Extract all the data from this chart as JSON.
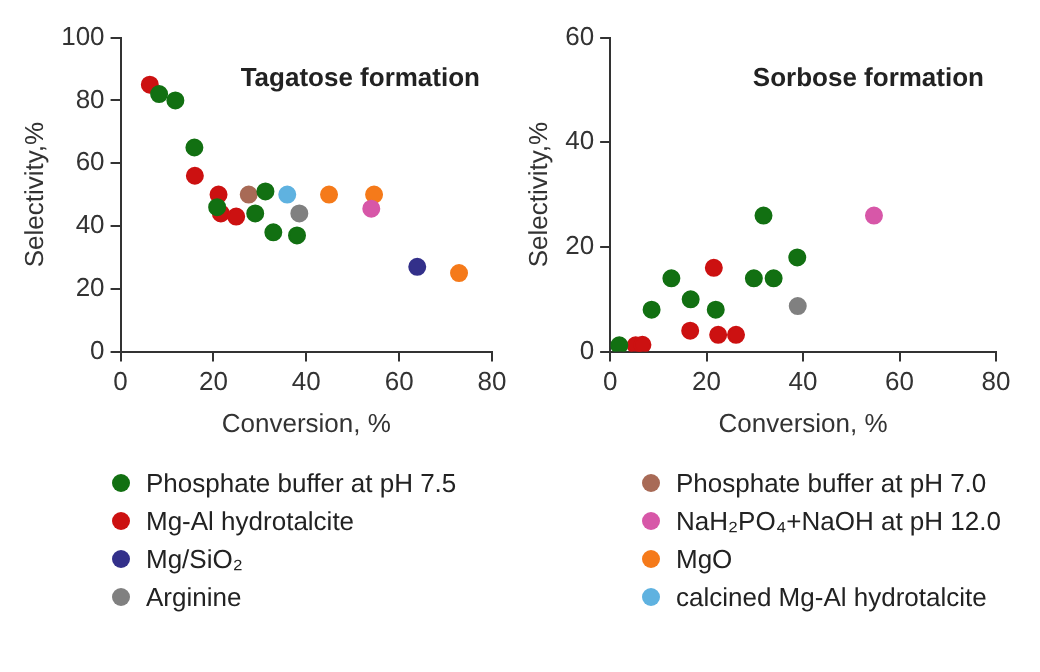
{
  "chart_data": [
    {
      "type": "scatter",
      "title": "Tagatose formation",
      "xlabel": "Conversion, %",
      "ylabel": "Selectivity,%",
      "xlim": [
        0,
        80
      ],
      "xticks": [
        0,
        20,
        40,
        60,
        80
      ],
      "ylim": [
        0,
        100
      ],
      "yticks": [
        0,
        20,
        40,
        60,
        80,
        100
      ],
      "marker": "circle",
      "legend": "bottom",
      "series": [
        {
          "name": "Phosphate buffer at pH 7.5",
          "color": "#127012",
          "x": [
            8.3,
            11.8,
            15.9,
            20.8,
            29,
            31.2,
            32.9,
            38
          ],
          "values": [
            82,
            80,
            65,
            46,
            44,
            51,
            38,
            37
          ]
        },
        {
          "name": "Mg-Al hydrotalcite",
          "color": "#cc1111",
          "x": [
            6.3,
            16,
            21.1,
            21.6,
            24.9
          ],
          "values": [
            85,
            56,
            50,
            44,
            43
          ]
        },
        {
          "name": "Mg/SiO₂",
          "color": "#33308a",
          "x": [
            63.9
          ],
          "values": [
            27
          ]
        },
        {
          "name": "Arginine",
          "color": "#808080",
          "x": [
            38.5
          ],
          "values": [
            44
          ]
        },
        {
          "name": "Phosphate buffer at pH 7.0",
          "color": "#a86a56",
          "x": [
            27.6
          ],
          "values": [
            50
          ]
        },
        {
          "name": "NaH₂PO₄+NaOH at pH 12.0",
          "color": "#d757a8",
          "x": [
            54
          ],
          "values": [
            45.5
          ]
        },
        {
          "name": "MgO",
          "color": "#f57a1a",
          "x": [
            44.9,
            54.6,
            72.9
          ],
          "values": [
            50,
            50,
            25
          ]
        },
        {
          "name": "calcined Mg-Al hydrotalcite",
          "color": "#5fb2e0",
          "x": [
            35.9
          ],
          "values": [
            50
          ]
        }
      ]
    },
    {
      "type": "scatter",
      "title": "Sorbose formation",
      "xlabel": "Conversion, %",
      "ylabel": "Selectivity,%",
      "xlim": [
        0,
        80
      ],
      "xticks": [
        0,
        20,
        40,
        60,
        80
      ],
      "ylim": [
        0,
        60
      ],
      "yticks": [
        0,
        20,
        40,
        60
      ],
      "marker": "circle",
      "series": [
        {
          "name": "Phosphate buffer at pH 7.5",
          "color": "#127012",
          "x": [
            1.9,
            8.6,
            12.7,
            16.7,
            21.9,
            29.8,
            31.8,
            33.9,
            38.8
          ],
          "values": [
            1.2,
            8,
            14,
            10,
            8,
            14,
            26,
            14,
            18
          ]
        },
        {
          "name": "Mg-Al hydrotalcite",
          "color": "#cc1111",
          "x": [
            5.3,
            6.7,
            16.6,
            21.5,
            22.4,
            26.1
          ],
          "values": [
            1.2,
            1.3,
            4,
            16,
            3.2,
            3.2
          ]
        },
        {
          "name": "Arginine",
          "color": "#808080",
          "x": [
            38.9
          ],
          "values": [
            8.7
          ]
        },
        {
          "name": "NaH₂PO₄+NaOH at pH 12.0",
          "color": "#d757a8",
          "x": [
            54.7
          ],
          "values": [
            26
          ]
        }
      ]
    }
  ]
}
